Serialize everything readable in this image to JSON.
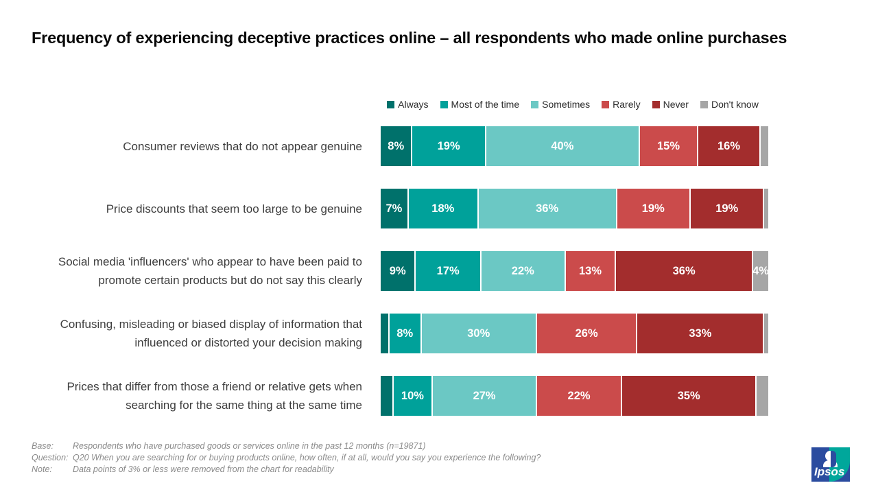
{
  "title": "Frequency of experiencing deceptive practices online – all respondents who made online purchases",
  "chart_data": {
    "type": "bar",
    "subtype": "horizontal_stacked_100pct",
    "title": "Frequency of experiencing deceptive practices online – all respondents who made online purchases",
    "unit": "%",
    "xlim": [
      0,
      100
    ],
    "legend_position": "top",
    "grid": false,
    "series": [
      {
        "name": "Always",
        "color": "#00716B"
      },
      {
        "name": "Most of the time",
        "color": "#00A19A"
      },
      {
        "name": "Sometimes",
        "color": "#6BC8C4"
      },
      {
        "name": "Rarely",
        "color": "#CB4B4B"
      },
      {
        "name": "Never",
        "color": "#A32D2D"
      },
      {
        "name": "Don't know",
        "color": "#A6A6A6"
      }
    ],
    "categories": [
      "Consumer reviews that do not appear genuine",
      "Price discounts that seem too large to be genuine",
      "Social media 'influencers' who appear to have been paid to promote certain products but do not say this clearly",
      "Confusing, misleading or biased display of information that influenced or distorted your decision making",
      "Prices that differ from those a friend or relative gets when searching for the same thing at the same time"
    ],
    "values": [
      [
        8,
        19,
        40,
        15,
        16,
        2
      ],
      [
        7,
        18,
        36,
        19,
        19,
        1
      ],
      [
        9,
        17,
        22,
        13,
        36,
        4
      ],
      [
        2,
        8,
        30,
        26,
        33,
        1
      ],
      [
        3,
        10,
        27,
        22,
        35,
        3
      ]
    ],
    "bar_labels": [
      [
        "8%",
        "19%",
        "40%",
        "15%",
        "16%",
        ""
      ],
      [
        "7%",
        "18%",
        "36%",
        "19%",
        "19%",
        ""
      ],
      [
        "9%",
        "17%",
        "22%",
        "13%",
        "36%",
        "4%"
      ],
      [
        "",
        "8%",
        "30%",
        "26%",
        "33%",
        ""
      ],
      [
        "",
        "10%",
        "27%",
        "22%",
        "35%",
        ""
      ]
    ]
  },
  "footer": {
    "rows": [
      {
        "label": "Base:",
        "text": "Respondents who have purchased goods or services online in the past 12 months  (n=19871)"
      },
      {
        "label": "Question:",
        "text": "Q20 When you are searching for or buying products online, how often, if at all, would you say you experience the following?"
      },
      {
        "label": "Note:",
        "text": "Data points of 3% or less were removed from the chart for readability"
      }
    ]
  },
  "logo": {
    "text": "Ipsos",
    "blue": "#2B4C9F",
    "teal": "#00A79B"
  }
}
